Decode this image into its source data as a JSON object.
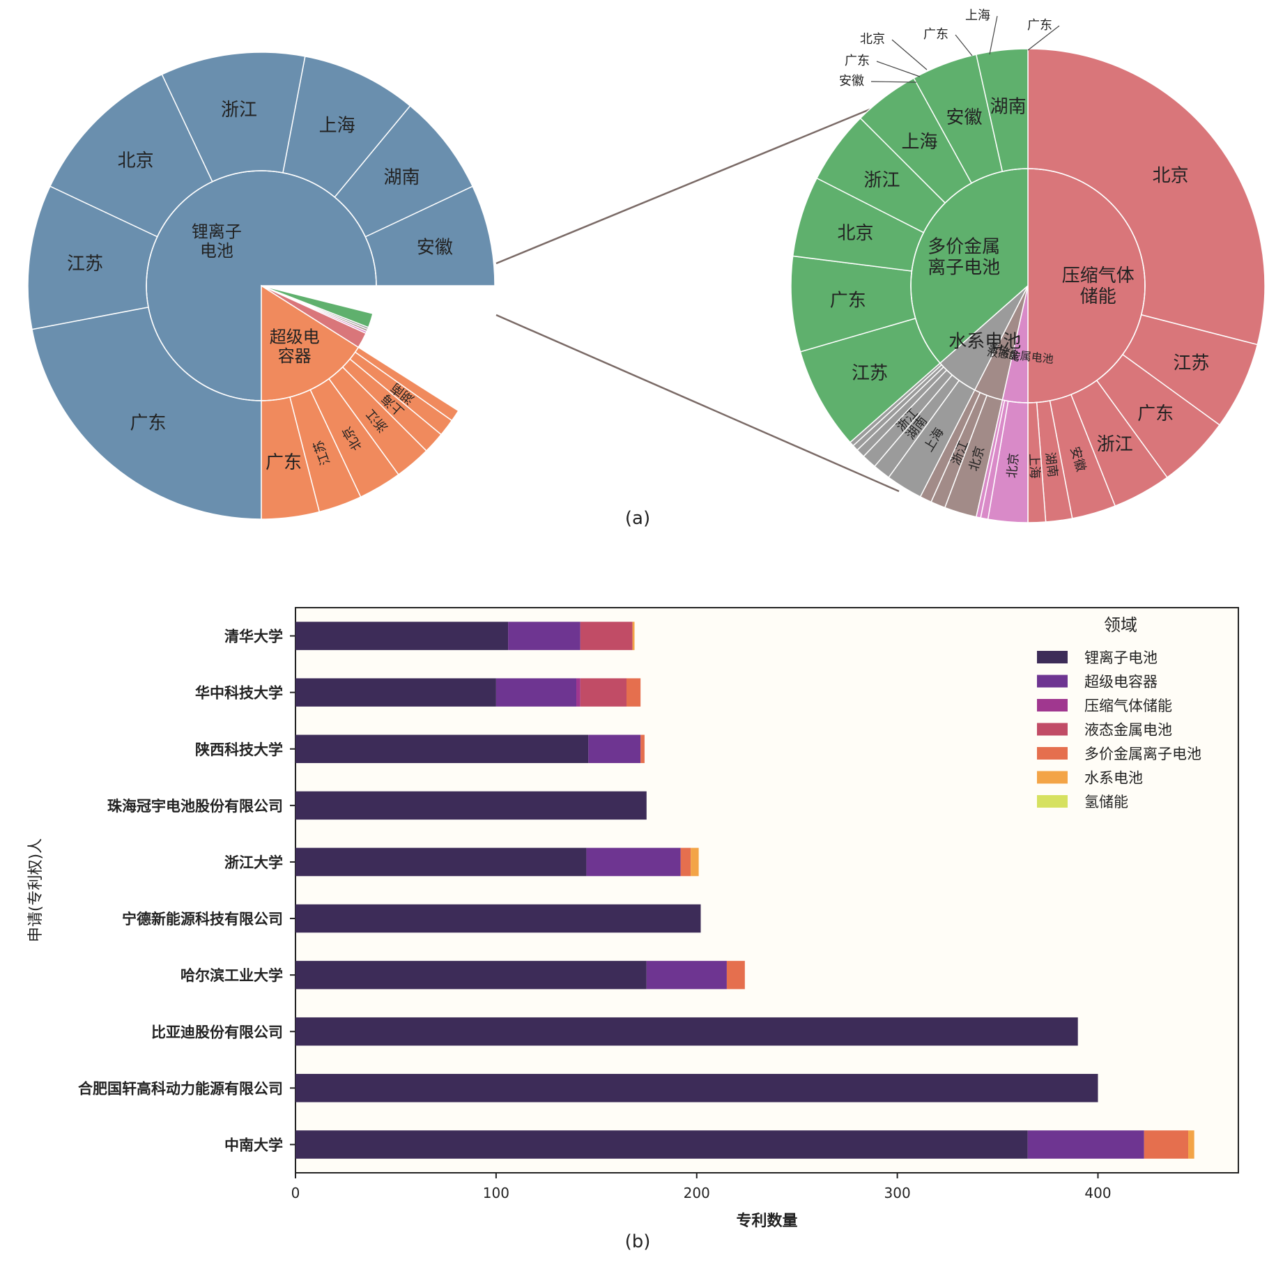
{
  "figure": {
    "caption_a": "(a)",
    "caption_b": "(b)"
  },
  "chart_data": [
    {
      "type": "sunburst",
      "center": "",
      "inner": [
        {
          "label": "锂离子\n电池",
          "value": 75.0,
          "color": "#6a8fae"
        },
        {
          "label": "超级电\n容器",
          "value": 16.0,
          "color": "#f08a5d"
        },
        {
          "label": "压缩气体\n储能",
          "value": 2.2,
          "color": "#d9767a"
        },
        {
          "label": "液态金属电池",
          "value": 0.3,
          "color": "#d98ac8"
        },
        {
          "label": "氢储能",
          "value": 0.3,
          "color": "#a28b88"
        },
        {
          "label": "水系电池",
          "value": 0.3,
          "color": "#9b9b9b"
        },
        {
          "label": "多价金属\n离子电池",
          "value": 2.0,
          "color": "#5fb06d"
        },
        {
          "label": "",
          "value": 3.9,
          "color": "#ffffff"
        }
      ],
      "outer": [
        {
          "parent": 0,
          "label": "安徽",
          "value": 7.0
        },
        {
          "parent": 0,
          "label": "湖南",
          "value": 7.0
        },
        {
          "parent": 0,
          "label": "上海",
          "value": 8.0
        },
        {
          "parent": 0,
          "label": "浙江",
          "value": 10.0
        },
        {
          "parent": 0,
          "label": "北京",
          "value": 11.0
        },
        {
          "parent": 0,
          "label": "江苏",
          "value": 10.0
        },
        {
          "parent": 0,
          "label": "广东",
          "value": 22.0
        },
        {
          "parent": 1,
          "label": "广东",
          "value": 4.0
        },
        {
          "parent": 1,
          "label": "江苏",
          "value": 3.0
        },
        {
          "parent": 1,
          "label": "北京",
          "value": 3.0
        },
        {
          "parent": 1,
          "label": "浙江",
          "value": 2.5
        },
        {
          "parent": 1,
          "label": "上海",
          "value": 1.5
        },
        {
          "parent": 1,
          "label": "湖南",
          "value": 1.2
        },
        {
          "parent": 1,
          "label": "安徽",
          "value": 0.8
        }
      ]
    },
    {
      "type": "sunburst",
      "inner": [
        {
          "label": "压缩气体\n储能",
          "value": 50.0,
          "color": "#d9767a"
        },
        {
          "label": "液态金属电池",
          "value": 3.5,
          "color": "#d98ac8"
        },
        {
          "label": "氢储能",
          "value": 4.0,
          "color": "#a28b88"
        },
        {
          "label": "水系电池",
          "value": 6.0,
          "color": "#9b9b9b"
        },
        {
          "label": "多价金属\n离子电池",
          "value": 36.5,
          "color": "#5fb06d"
        }
      ],
      "outer": [
        {
          "parent": 0,
          "label": "北京",
          "value": 29.0
        },
        {
          "parent": 0,
          "label": "江苏",
          "value": 6.0
        },
        {
          "parent": 0,
          "label": "广东",
          "value": 5.0
        },
        {
          "parent": 0,
          "label": "浙江",
          "value": 4.0
        },
        {
          "parent": 0,
          "label": "安徽",
          "value": 3.0
        },
        {
          "parent": 0,
          "label": "湖南",
          "value": 1.8
        },
        {
          "parent": 0,
          "label": "上海",
          "value": 1.2
        },
        {
          "parent": 4,
          "label": "江苏",
          "value": 7.0
        },
        {
          "parent": 4,
          "label": "广东",
          "value": 6.5
        },
        {
          "parent": 4,
          "label": "北京",
          "value": 5.5
        },
        {
          "parent": 4,
          "label": "浙江",
          "value": 5.0
        },
        {
          "parent": 4,
          "label": "上海",
          "value": 4.5
        },
        {
          "parent": 4,
          "label": "安徽",
          "value": 4.5
        },
        {
          "parent": 4,
          "label": "湖南",
          "value": 3.5
        },
        {
          "parent": 3,
          "label": "上海",
          "value": 2.5
        },
        {
          "parent": 3,
          "label": "湖南",
          "value": 1.2
        },
        {
          "parent": 3,
          "label": "浙江",
          "value": 1.0
        },
        {
          "parent": 3,
          "label": "安徽",
          "value": 0.6
        },
        {
          "parent": 3,
          "label": "广东",
          "value": 0.4
        },
        {
          "parent": 3,
          "label": "北京",
          "value": 0.3
        },
        {
          "parent": 2,
          "label": "北京",
          "value": 2.2
        },
        {
          "parent": 2,
          "label": "浙江",
          "value": 1.0
        },
        {
          "parent": 2,
          "label": "广东",
          "value": 0.8
        },
        {
          "parent": 1,
          "label": "北京",
          "value": 2.7
        },
        {
          "parent": 1,
          "label": "上海",
          "value": 0.5
        },
        {
          "parent": 1,
          "label": "广东",
          "value": 0.3
        }
      ],
      "callouts": [
        "北京",
        "广东",
        "安徽",
        "广东",
        "上海",
        "广东"
      ]
    },
    {
      "type": "bar",
      "orientation": "horizontal",
      "stacked": true,
      "xlabel": "专利数量",
      "ylabel": "申请(专利权)人",
      "xlim": [
        0,
        470
      ],
      "xticks": [
        0,
        100,
        200,
        300,
        400
      ],
      "legend_title": "领域",
      "legend_position": "top-right",
      "categories": [
        "清华大学",
        "华中科技大学",
        "陕西科技大学",
        "珠海冠宇电池股份有限公司",
        "浙江大学",
        "宁德新能源科技有限公司",
        "哈尔滨工业大学",
        "比亚迪股份有限公司",
        "合肥国轩高科动力能源有限公司",
        "中南大学"
      ],
      "series": [
        {
          "name": "锂离子电池",
          "color": "#3d2c58",
          "values": [
            106,
            100,
            146,
            175,
            145,
            202,
            175,
            390,
            400,
            365
          ]
        },
        {
          "name": "超级电容器",
          "color": "#6e3591",
          "values": [
            36,
            40,
            26,
            0,
            47,
            0,
            40,
            0,
            0,
            58
          ]
        },
        {
          "name": "压缩气体储能",
          "color": "#a0378f",
          "values": [
            0,
            2,
            0,
            0,
            0,
            0,
            0,
            0,
            0,
            0
          ]
        },
        {
          "name": "液态金属电池",
          "color": "#c14c66",
          "values": [
            26,
            23,
            0,
            0,
            0,
            0,
            0,
            0,
            0,
            0
          ]
        },
        {
          "name": "多价金属离子电池",
          "color": "#e56f4e",
          "values": [
            0,
            7,
            2,
            0,
            5,
            0,
            9,
            0,
            0,
            22
          ]
        },
        {
          "name": "水系电池",
          "color": "#f3a447",
          "values": [
            1,
            0,
            0,
            0,
            4,
            0,
            0,
            0,
            0,
            3
          ]
        },
        {
          "name": "氢储能",
          "color": "#d6e160",
          "values": [
            0,
            0,
            0,
            0,
            0,
            0,
            0,
            0,
            0,
            0
          ]
        }
      ]
    }
  ]
}
